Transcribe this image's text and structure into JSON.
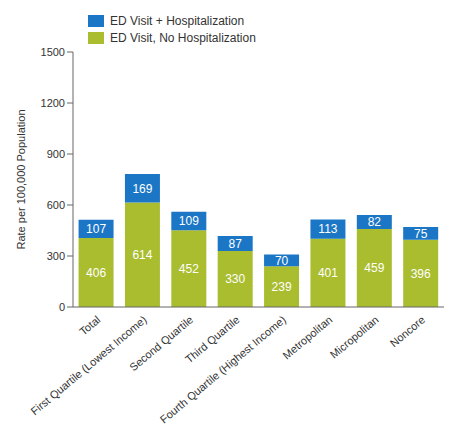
{
  "chart_data": {
    "type": "bar",
    "stacked": true,
    "data_labels": true,
    "grid": false,
    "legend": "upper left",
    "y_label": "Rate per 100,000 Population",
    "categories": [
      "Total",
      "First Quartile (Lowest Income)",
      "Second Quartile",
      "Third Quartile",
      "Fourth Quartile (Highest Income)",
      "Metropolitan",
      "Micropolitan",
      "Noncore"
    ],
    "series": [
      {
        "name": "ED Visit, No Hospitalization",
        "color": "#a9bd2f",
        "values": [
          406,
          614,
          452,
          330,
          239,
          401,
          459,
          396
        ]
      },
      {
        "name": "ED Visit + Hospitalization",
        "color": "#1b76c6",
        "values": [
          107,
          169,
          109,
          87,
          70,
          113,
          82,
          75
        ]
      }
    ],
    "ylim": [
      0,
      1500
    ],
    "yticks": [
      0,
      300,
      600,
      900,
      1200,
      1500
    ]
  }
}
